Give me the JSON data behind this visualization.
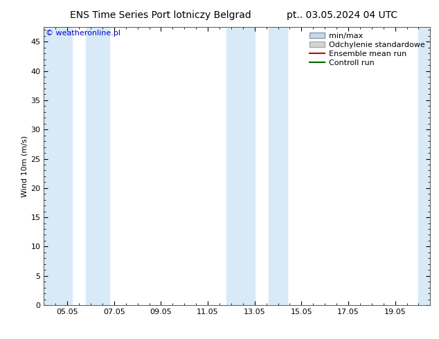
{
  "title_left": "ENS Time Series Port lotniczy Belgrad",
  "title_right": "pt.. 03.05.2024 04 UTC",
  "watermark": "© weatheronline.pl",
  "ylabel": "Wind 10m (m/s)",
  "ylim": [
    0,
    47.5
  ],
  "yticks": [
    0,
    5,
    10,
    15,
    20,
    25,
    30,
    35,
    40,
    45
  ],
  "xtick_labels": [
    "05.05",
    "07.05",
    "09.05",
    "11.05",
    "13.05",
    "15.05",
    "17.05",
    "19.05"
  ],
  "xtick_positions": [
    4,
    6,
    8,
    10,
    12,
    14,
    16,
    18
  ],
  "xmin": 3,
  "xmax": 19.5,
  "shaded_bands": [
    [
      3.0,
      4.2
    ],
    [
      4.8,
      5.8
    ],
    [
      10.8,
      12.0
    ],
    [
      12.6,
      13.4
    ],
    [
      19.0,
      19.5
    ]
  ],
  "shade_color": "#d8eaf8",
  "bg_color": "#ffffff",
  "plot_bg_color": "#ffffff",
  "legend_items": [
    {
      "label": "min/max",
      "type": "patch",
      "facecolor": "#c8d8ec",
      "edgecolor": "#8899aa",
      "lw": 1
    },
    {
      "label": "Odchylenie standardowe",
      "type": "patch",
      "facecolor": "#d4d4d4",
      "edgecolor": "#aaaaaa",
      "lw": 1
    },
    {
      "label": "Ensemble mean run",
      "type": "line",
      "color": "#cc0000",
      "lw": 1.5
    },
    {
      "label": "Controll run",
      "type": "line",
      "color": "#006400",
      "lw": 1.5
    }
  ],
  "title_fontsize": 10,
  "axis_fontsize": 8,
  "tick_fontsize": 8,
  "legend_fontsize": 8,
  "watermark_color": "#0000cc",
  "watermark_fontsize": 8
}
